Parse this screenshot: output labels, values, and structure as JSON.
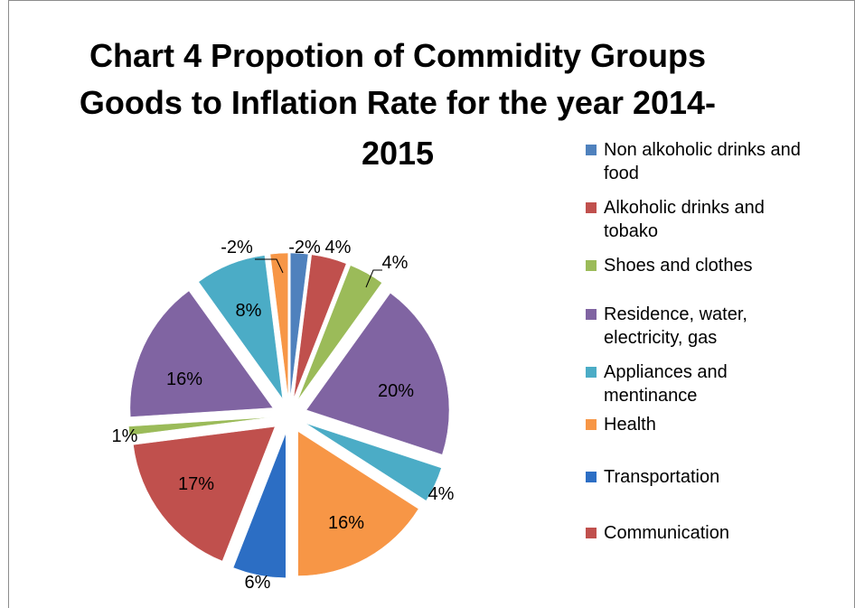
{
  "chart_data": {
    "type": "pie",
    "style": "exploded-3d-pie",
    "title": "Chart 4 Propotion of Commidity Groups Goods to Inflation Rate for the year 2014-2015",
    "title_lines": [
      "Chart 4 Propotion of Commidity Groups",
      "Goods to Inflation Rate for the year 2014-",
      "2015"
    ],
    "legend_position": "right",
    "slices": [
      {
        "key": "s1",
        "value": 2,
        "label": "-2%",
        "color": "#4f81bd"
      },
      {
        "key": "s2",
        "value": 4,
        "label": "4%",
        "color": "#c0504d"
      },
      {
        "key": "s3",
        "value": 4,
        "label": "4%",
        "color": "#9bbb59"
      },
      {
        "key": "s4",
        "value": 20,
        "label": "20%",
        "color": "#8064a2"
      },
      {
        "key": "s5",
        "value": 4,
        "label": "4%",
        "color": "#4bacc6"
      },
      {
        "key": "s6",
        "value": 16,
        "label": "16%",
        "color": "#f79646"
      },
      {
        "key": "s7",
        "value": 6,
        "label": "6%",
        "color": "#2c6ec4"
      },
      {
        "key": "s8",
        "value": 17,
        "label": "17%",
        "color": "#c0504d"
      },
      {
        "key": "s9",
        "value": 1,
        "label": "1%",
        "color": "#9bbb59"
      },
      {
        "key": "s10",
        "value": 16,
        "label": "16%",
        "color": "#8064a2"
      },
      {
        "key": "s11",
        "value": 8,
        "label": "8%",
        "color": "#4bacc6"
      },
      {
        "key": "s12",
        "value": 2,
        "label": "-2%",
        "color": "#f79646"
      }
    ],
    "legend": [
      {
        "text": "Non alkoholic drinks and food",
        "lines": [
          "Non alkoholic drinks and",
          "food"
        ],
        "color": "#4f81bd"
      },
      {
        "text": "Alkoholic drinks and tobako",
        "lines": [
          "Alkoholic drinks and",
          "tobako"
        ],
        "color": "#c0504d"
      },
      {
        "text": "Shoes and clothes",
        "lines": [
          "Shoes and clothes"
        ],
        "color": "#9bbb59"
      },
      {
        "text": "Residence, water, electricity, gas",
        "lines": [
          "Residence, water,",
          "electricity, gas"
        ],
        "color": "#8064a2"
      },
      {
        "text": "Appliances and mentinance",
        "lines": [
          "Appliances and",
          "mentinance"
        ],
        "color": "#4bacc6"
      },
      {
        "text": "Health",
        "lines": [
          "Health"
        ],
        "color": "#f79646"
      },
      {
        "text": "Transportation",
        "lines": [
          "Transportation"
        ],
        "color": "#2c6ec4"
      },
      {
        "text": "Communication",
        "lines": [
          "Communication"
        ],
        "color": "#c0504d"
      }
    ]
  }
}
